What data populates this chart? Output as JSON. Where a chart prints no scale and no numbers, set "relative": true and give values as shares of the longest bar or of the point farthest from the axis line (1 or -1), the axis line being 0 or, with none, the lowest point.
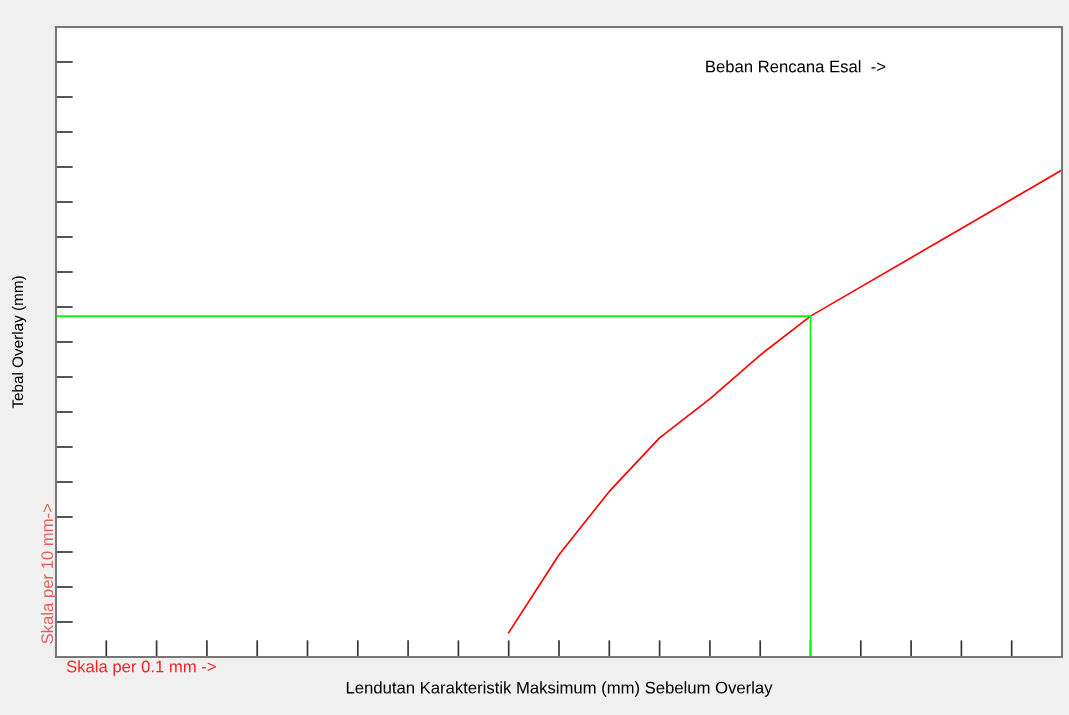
{
  "chart_data": {
    "type": "line",
    "relative": true,
    "xlabel": "Lendutan Karakteristik Maksimum (mm) Sebelum Overlay",
    "ylabel": "Tebal Overlay (mm)",
    "annotations": [
      "Beban Rencana Esal  ->",
      "Skala per 0.1 mm ->",
      "Skala per 10 mm->"
    ],
    "categories": [
      null,
      null,
      null,
      null,
      null,
      null,
      null,
      null,
      null,
      null,
      null,
      null,
      null,
      null,
      null,
      null,
      null,
      null,
      null,
      null,
      null
    ],
    "series": [
      {
        "color": "#ff0000",
        "values": [
          null,
          null,
          null,
          null,
          null,
          null,
          null,
          null,
          null,
          0.05,
          0.21,
          0.34,
          0.45,
          0.53,
          0.62,
          0.7,
          0.76,
          0.82,
          0.88,
          0.94,
          1.0
        ]
      }
    ],
    "ref_lines": [
      {
        "axis": "y",
        "value": 0.7,
        "color": "#00ff00"
      }
    ],
    "grid": false,
    "legend": false,
    "marker": "none",
    "line_style": "solid",
    "tick_labels": false
  }
}
